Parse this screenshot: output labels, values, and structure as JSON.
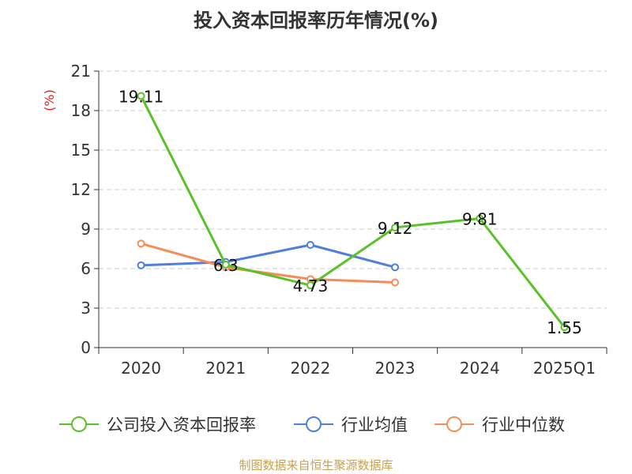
{
  "chart_data": {
    "type": "line",
    "title": "投入资本回报率历年情况(%)",
    "ylabel": "(%)",
    "categories": [
      "2020",
      "2021",
      "2022",
      "2023",
      "2024",
      "2025Q1"
    ],
    "y_ticks": [
      "0",
      "3",
      "6",
      "9",
      "12",
      "15",
      "18",
      "21"
    ],
    "ylim": [
      0,
      21
    ],
    "grid": true,
    "legend_position": "bottom",
    "series": [
      {
        "name": "公司投入资本回报率",
        "color": "#5bc12a",
        "values": [
          19.11,
          6.3,
          4.73,
          9.12,
          9.81,
          1.55
        ],
        "labels": [
          "19.11",
          "6.3",
          "4.73",
          "9.12",
          "9.81",
          "1.55"
        ]
      },
      {
        "name": "行业均值",
        "color": "#4f7fdc",
        "values": [
          6.25,
          6.5,
          7.8,
          6.1,
          null,
          null
        ]
      },
      {
        "name": "行业中位数",
        "color": "#f58d5b",
        "values": [
          7.9,
          6.1,
          5.2,
          4.95,
          null,
          null
        ]
      }
    ],
    "source": "制图数据来自恒生聚源数据库",
    "source_color": "#c8a050",
    "ylabel_color": "#e02020"
  }
}
